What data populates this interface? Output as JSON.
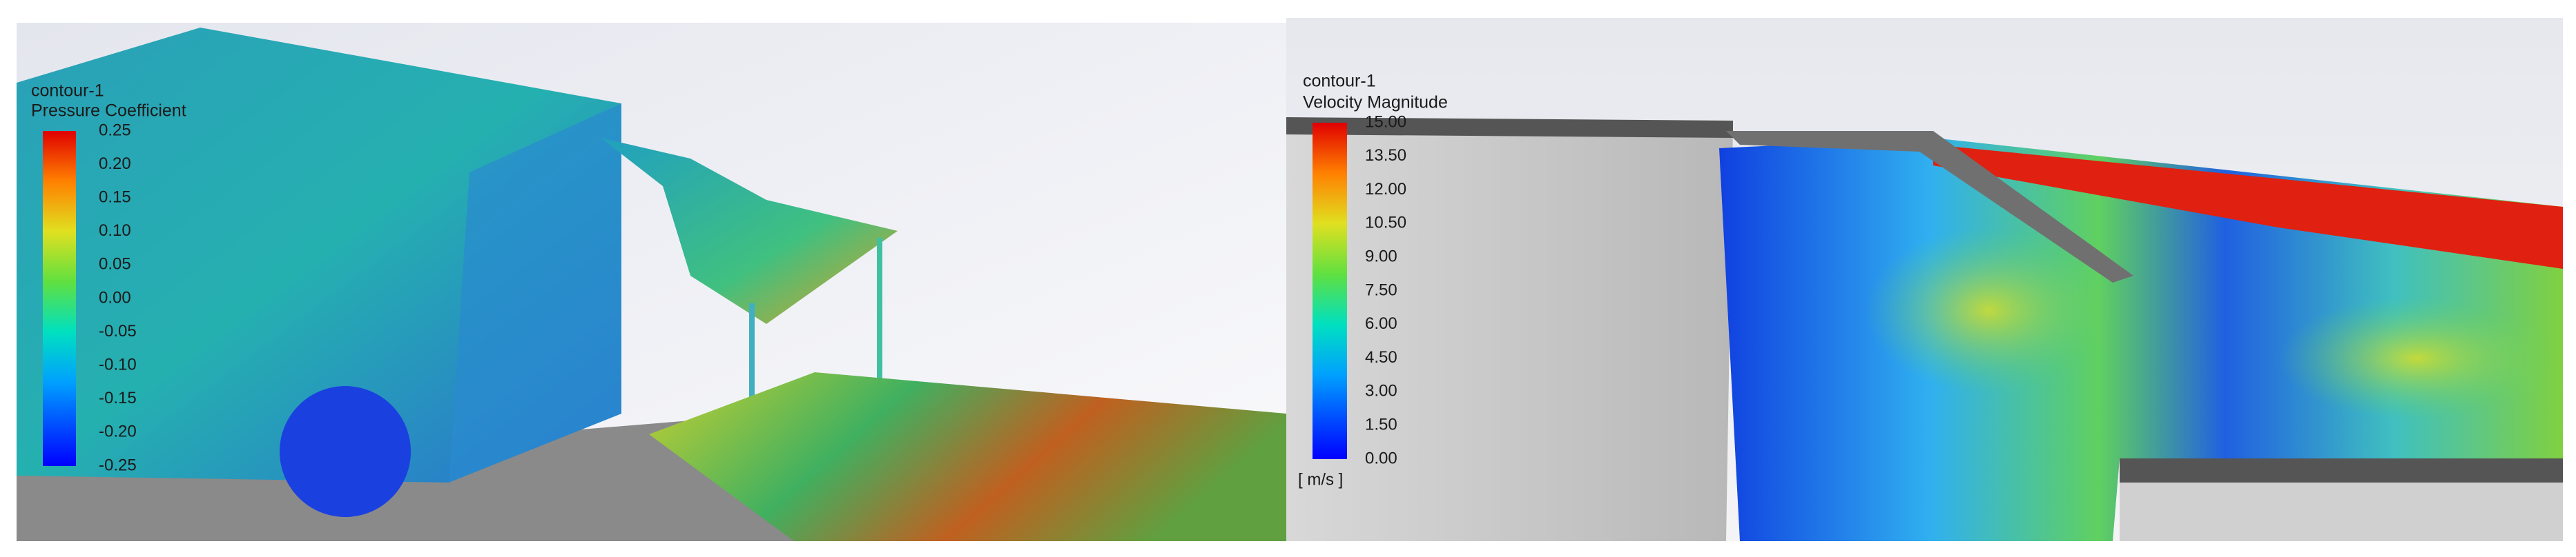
{
  "panels": [
    {
      "legend": {
        "title": "contour-1",
        "variable": "Pressure Coefficient",
        "ticks": [
          "0.25",
          "0.20",
          "0.15",
          "0.10",
          "0.05",
          "0.00",
          "-0.05",
          "-0.10",
          "-0.15",
          "-0.20",
          "-0.25"
        ]
      }
    },
    {
      "legend": {
        "title": "contour-1",
        "variable": "Velocity Magnitude",
        "ticks": [
          "15.00",
          "13.50",
          "12.00",
          "10.50",
          "9.00",
          "7.50",
          "6.00",
          "4.50",
          "3.00",
          "1.50",
          "0.00"
        ],
        "unit": "[ m/s ]"
      }
    }
  ]
}
